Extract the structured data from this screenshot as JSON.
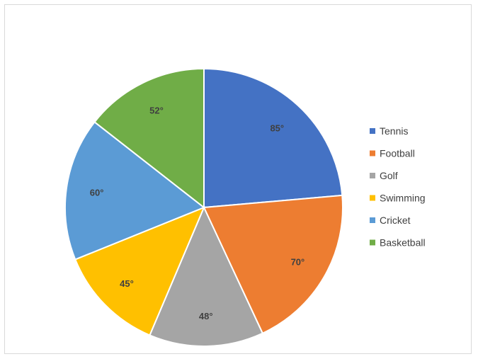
{
  "chart_data": {
    "type": "pie",
    "unit": "°",
    "legend_position": "right",
    "slices": [
      {
        "name": "Tennis",
        "value": 85,
        "label": "85°",
        "color": "#4472c4"
      },
      {
        "name": "Football",
        "value": 70,
        "label": "70°",
        "color": "#ed7d31"
      },
      {
        "name": "Golf",
        "value": 48,
        "label": "48°",
        "color": "#a5a5a5"
      },
      {
        "name": "Swimming",
        "value": 45,
        "label": "45°",
        "color": "#ffc000"
      },
      {
        "name": "Cricket",
        "value": 60,
        "label": "60°",
        "color": "#5b9bd5"
      },
      {
        "name": "Basketball",
        "value": 52,
        "label": "52°",
        "color": "#70ad47"
      }
    ]
  }
}
